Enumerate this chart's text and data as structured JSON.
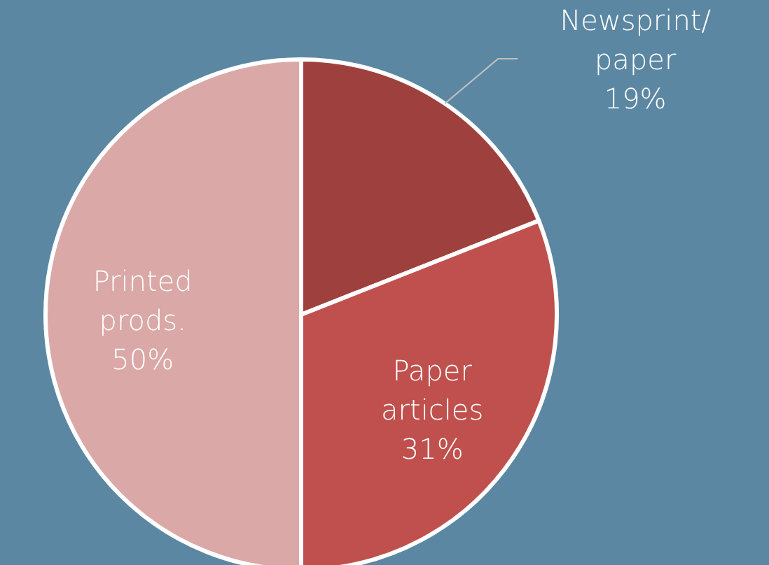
{
  "chart_data": {
    "type": "pie",
    "categories": [
      "Newsprint/ paper",
      "Paper articles",
      "Printed prods."
    ],
    "values": [
      19,
      31,
      50
    ],
    "colors": [
      "#9e413e",
      "#c0504d",
      "#d9a8a7"
    ],
    "value_labels": [
      "19%",
      "31%",
      "50%"
    ],
    "legend": false
  }
}
